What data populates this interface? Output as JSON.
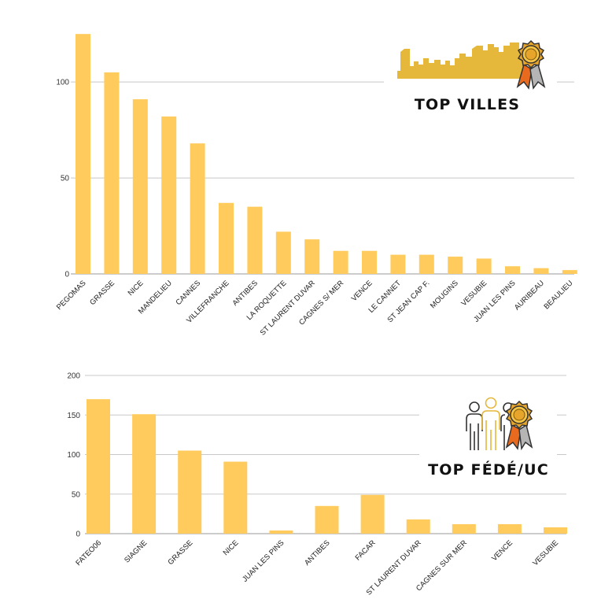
{
  "colors": {
    "bar": "#FFCB5C",
    "grid": "#C8C8C8",
    "title": "#111111",
    "skyline": "#E5B73A",
    "medal": "#E8A52B",
    "ribbon": "#E86A1E"
  },
  "icons": {
    "top_villes": [
      "city-skyline-icon",
      "award-medal-icon"
    ],
    "top_fede": [
      "people-icon",
      "award-medal-icon"
    ]
  },
  "chart_data": [
    {
      "type": "bar",
      "title": "TOP VILLES",
      "categories": [
        "PEGOMAS",
        "GRASSE",
        "NICE",
        "MANDELIEU",
        "CANNES",
        "VILLEFRANCHE",
        "ANTIBES",
        "LA ROQUETTE",
        "ST LAURENT DUVAR",
        "CAGNES S/ MER",
        "VENCE",
        "LE CANNET",
        "ST JEAN CAP F.",
        "MOUGINS",
        "VESUBIE",
        "JUAN LES PINS",
        "AURIBEAU",
        "BEAULIEU"
      ],
      "values": [
        125,
        105,
        91,
        82,
        68,
        37,
        35,
        22,
        18,
        12,
        12,
        10,
        10,
        9,
        8,
        4,
        3,
        2
      ],
      "ylim": [
        0,
        130
      ],
      "yticks": [
        0,
        50,
        100
      ],
      "grid": true
    },
    {
      "type": "bar",
      "title": "TOP FÉDÉ/UC",
      "categories": [
        "FATEO06",
        "SIAGNE",
        "GRASSE",
        "NICE",
        "JUAN LES PINS",
        "ANTIBES",
        "FACAR",
        "ST LAURENT DUVAR",
        "CAGNES SUR MER",
        "VENCE",
        "VESUBIE"
      ],
      "values": [
        170,
        151,
        105,
        91,
        4,
        35,
        49,
        18,
        12,
        12,
        8
      ],
      "ylim": [
        0,
        200
      ],
      "yticks": [
        0,
        50,
        100,
        150,
        200
      ],
      "grid": true
    }
  ]
}
